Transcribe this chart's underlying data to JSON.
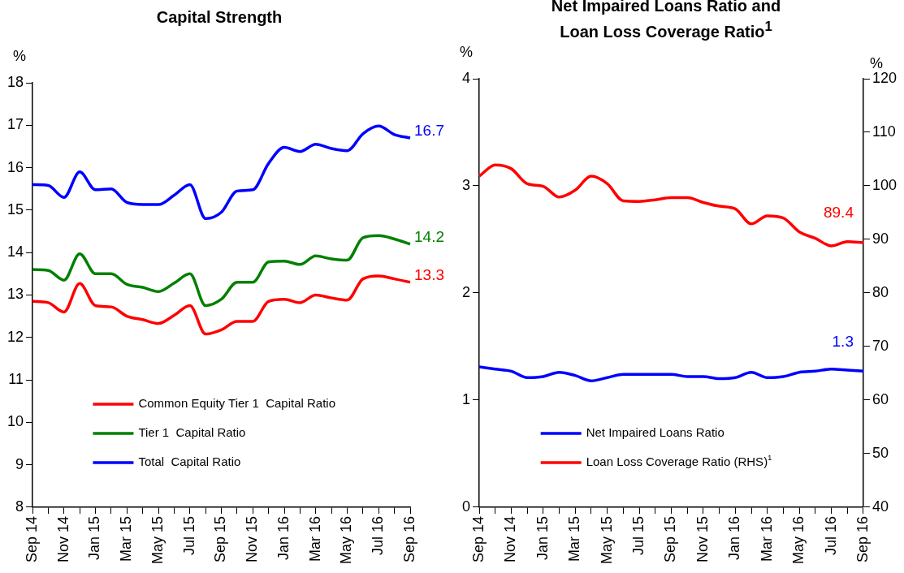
{
  "chart_data": [
    {
      "type": "line",
      "title": "Capital Strength",
      "ylabel": "%",
      "categories": [
        "Sep 14",
        null,
        "Nov 14",
        null,
        "Jan 15",
        null,
        "Mar 15",
        null,
        "May 15",
        null,
        "Jul 15",
        null,
        "Sep 15",
        null,
        "Nov 15",
        null,
        "Jan 16",
        null,
        "Mar 16",
        null,
        "May 16",
        null,
        "Jul 16",
        null,
        "Sep 16"
      ],
      "ylim": [
        8,
        18
      ],
      "yticks": [
        8,
        9,
        10,
        11,
        12,
        13,
        14,
        15,
        16,
        17,
        18
      ],
      "grid": false,
      "legend": "bottom left",
      "series": [
        {
          "name": "Common Equity Tier 1  Capital Ratio",
          "color": "#ff0000",
          "values": [
            12.85,
            12.82,
            12.6,
            13.27,
            12.75,
            12.72,
            12.5,
            12.42,
            12.33,
            12.52,
            12.75,
            12.08,
            12.18,
            12.38,
            12.38,
            12.85,
            12.9,
            12.82,
            13.0,
            12.93,
            12.88,
            13.38,
            13.45,
            13.38,
            13.3
          ],
          "value_labels": [
            null,
            null,
            null,
            null,
            null,
            null,
            null,
            null,
            null,
            null,
            null,
            null,
            null,
            null,
            null,
            null,
            null,
            null,
            null,
            null,
            null,
            null,
            null,
            null,
            "13.3"
          ]
        },
        {
          "name": "Tier 1  Capital Ratio",
          "color": "#008000",
          "values": [
            13.6,
            13.58,
            13.35,
            13.97,
            13.5,
            13.5,
            13.25,
            13.18,
            13.08,
            13.28,
            13.5,
            12.75,
            12.9,
            13.3,
            13.3,
            13.78,
            13.8,
            13.72,
            13.92,
            13.85,
            13.82,
            14.35,
            14.4,
            14.32,
            14.2
          ],
          "value_labels": [
            null,
            null,
            null,
            null,
            null,
            null,
            null,
            null,
            null,
            null,
            null,
            null,
            null,
            null,
            null,
            null,
            null,
            null,
            null,
            null,
            null,
            null,
            null,
            null,
            "14.2"
          ]
        },
        {
          "name": "Total  Capital Ratio",
          "color": "#0000ff",
          "values": [
            15.6,
            15.58,
            15.3,
            15.9,
            15.48,
            15.5,
            15.18,
            15.13,
            15.13,
            15.35,
            15.6,
            14.8,
            14.95,
            15.45,
            15.48,
            16.1,
            16.48,
            16.38,
            16.55,
            16.45,
            16.4,
            16.8,
            16.98,
            16.78,
            16.7
          ],
          "value_labels": [
            null,
            null,
            null,
            null,
            null,
            null,
            null,
            null,
            null,
            null,
            null,
            null,
            null,
            null,
            null,
            null,
            null,
            null,
            null,
            null,
            null,
            null,
            null,
            null,
            "16.7"
          ]
        }
      ]
    },
    {
      "type": "line",
      "title": "Net Impaired Loans Ratio and Loan Loss Coverage Ratio$^{1}$",
      "ylabel": "%",
      "y2label": "%",
      "categories": [
        "Sep 14",
        null,
        "Nov 14",
        null,
        "Jan 15",
        null,
        "Mar 15",
        null,
        "May 15",
        null,
        "Jul 15",
        null,
        "Sep 15",
        null,
        "Nov 15",
        null,
        "Jan 16",
        null,
        "Mar 16",
        null,
        "May 16",
        null,
        "Jul 16",
        null,
        "Sep 16"
      ],
      "ylim": [
        0,
        4
      ],
      "yticks": [
        0,
        1,
        2,
        3,
        4
      ],
      "y2lim": [
        40,
        120
      ],
      "y2ticks": [
        40,
        50,
        60,
        70,
        80,
        90,
        100,
        110,
        120
      ],
      "grid": false,
      "legend": "bottom left",
      "series": [
        {
          "name": "Net Impaired Loans Ratio",
          "color": "#0000ff",
          "values": [
            1.31,
            1.29,
            1.27,
            1.21,
            1.22,
            1.26,
            1.23,
            1.18,
            1.21,
            1.24,
            1.24,
            1.24,
            1.24,
            1.22,
            1.22,
            1.2,
            1.21,
            1.26,
            1.21,
            1.22,
            1.26,
            1.27,
            1.29,
            1.28,
            1.27
          ],
          "value_labels": [
            null,
            null,
            null,
            null,
            null,
            null,
            null,
            null,
            null,
            null,
            null,
            null,
            null,
            null,
            null,
            null,
            null,
            null,
            null,
            null,
            null,
            null,
            null,
            null,
            "1.3"
          ]
        },
        {
          "name": "Loan Loss Coverage Ratio (RHS)$^{1}$",
          "color": "#ff0000",
          "axis": "y2",
          "values": [
            101.8,
            103.9,
            103.2,
            100.4,
            99.9,
            97.9,
            99.2,
            101.8,
            100.4,
            97.2,
            97.1,
            97.4,
            97.8,
            97.8,
            96.9,
            96.2,
            95.7,
            92.9,
            94.4,
            94.0,
            91.4,
            90.2,
            88.8,
            89.6,
            89.4
          ],
          "value_labels": [
            null,
            null,
            null,
            null,
            null,
            null,
            null,
            null,
            null,
            null,
            null,
            null,
            null,
            null,
            null,
            null,
            null,
            null,
            null,
            null,
            null,
            null,
            null,
            null,
            "89.4"
          ]
        }
      ]
    }
  ]
}
